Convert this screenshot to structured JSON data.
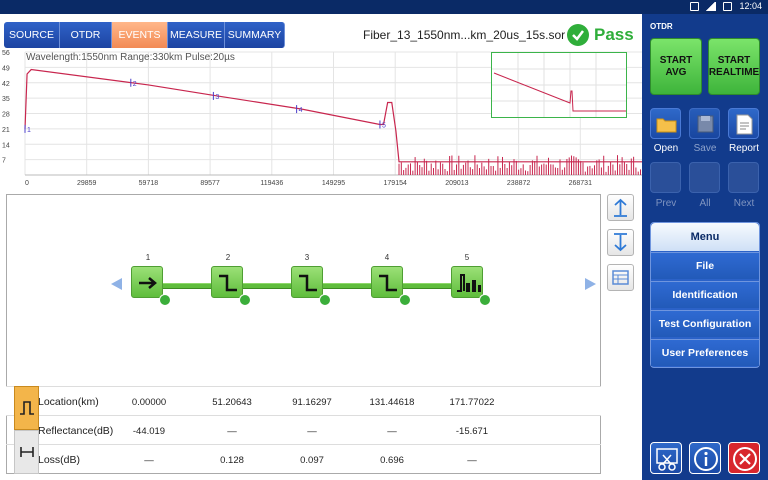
{
  "status_bar": {
    "time": "12:04"
  },
  "tabs": [
    {
      "label": "SOURCE",
      "active": false
    },
    {
      "label": "OTDR",
      "active": false
    },
    {
      "label": "EVENTS",
      "active": true
    },
    {
      "label": "MEASURE",
      "active": false
    },
    {
      "label": "SUMMARY",
      "active": false
    }
  ],
  "file_name": "Fiber_13_1550nm...km_20us_15s.sor",
  "result": {
    "label": "Pass",
    "color": "#2fae3a"
  },
  "chart_data": {
    "type": "line",
    "info": "Wavelength:1550nm  Range:330km  Pulse:20µs",
    "y_ticks": [
      "56",
      "49",
      "42",
      "35",
      "28",
      "21",
      "14",
      "7"
    ],
    "x_ticks": [
      "0",
      "29859",
      "59718",
      "89577",
      "119436",
      "149295",
      "179154",
      "209013",
      "238872",
      "268731"
    ],
    "ylim": [
      0,
      56
    ],
    "xlim": [
      0,
      298590
    ],
    "trace": [
      [
        0,
        21
      ],
      [
        1000,
        46
      ],
      [
        3000,
        48
      ],
      [
        59718,
        41
      ],
      [
        89577,
        36.5
      ],
      [
        134000,
        30
      ],
      [
        171770,
        23
      ],
      [
        173500,
        23
      ],
      [
        175500,
        33
      ],
      [
        177500,
        33
      ],
      [
        179500,
        20
      ],
      [
        181000,
        6
      ],
      [
        298590,
        6
      ]
    ],
    "event_markers": [
      {
        "label": "1",
        "x": 0,
        "y": 21
      },
      {
        "label": "2",
        "x": 51206,
        "y": 42
      },
      {
        "label": "3",
        "x": 91163,
        "y": 36
      },
      {
        "label": "4",
        "x": 131446,
        "y": 30
      },
      {
        "label": "5",
        "x": 171770,
        "y": 23
      }
    ],
    "trace_color": "#c8264e",
    "marker_color": "#4a3cc9",
    "grid": true
  },
  "events": [
    {
      "number": "1",
      "type": "launch"
    },
    {
      "number": "2",
      "type": "splice"
    },
    {
      "number": "3",
      "type": "splice"
    },
    {
      "number": "4",
      "type": "splice"
    },
    {
      "number": "5",
      "type": "end"
    }
  ],
  "table": {
    "rows": [
      {
        "label": "Location(km)",
        "values": [
          "0.00000",
          "51.20643",
          "91.16297",
          "131.44618",
          "171.77022"
        ]
      },
      {
        "label": "Reflectance(dB)",
        "values": [
          "-44.019",
          "—",
          "—",
          "—",
          "-15.671"
        ]
      },
      {
        "label": "Loss(dB)",
        "values": [
          "—",
          "0.128",
          "0.097",
          "0.696",
          "—"
        ]
      }
    ]
  },
  "right_panel": {
    "title": "OTDR",
    "start_avg": "START AVG",
    "start_realtime": "START REALTIME",
    "open": "Open",
    "save": "Save",
    "report": "Report",
    "prev": "Prev",
    "all": "All",
    "next": "Next",
    "menu_title": "Menu",
    "menu_items": [
      "File",
      "Identification",
      "Test Configuration",
      "User Preferences"
    ]
  },
  "colors": {
    "accent": "#123b8c",
    "tab_active": "#f28a55",
    "event_green": "#5fbd3c",
    "close_red": "#d8262c"
  }
}
